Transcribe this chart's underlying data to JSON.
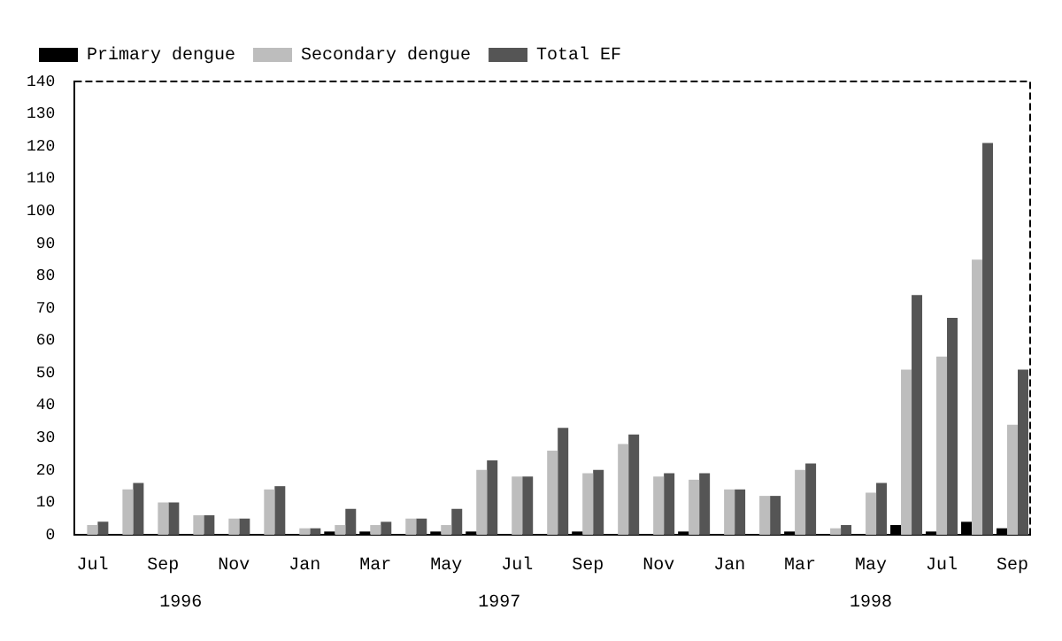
{
  "chart_data": {
    "type": "bar",
    "categories": [
      "Jul",
      null,
      "Sep",
      null,
      "Nov",
      null,
      "Jan",
      null,
      "Mar",
      null,
      "May",
      null,
      "Jul",
      null,
      "Sep",
      null,
      "Nov",
      null,
      "Jan",
      null,
      "Mar",
      null,
      "May",
      null,
      "Jul",
      null,
      "Sep"
    ],
    "series": [
      {
        "name": "Primary dengue",
        "color": "#000000",
        "values": [
          0,
          0,
          0,
          0,
          0,
          0,
          0,
          1,
          1,
          0,
          1,
          1,
          0,
          0,
          1,
          0,
          0,
          1,
          0,
          0,
          1,
          0,
          0,
          3,
          1,
          4,
          2
        ]
      },
      {
        "name": "Secondary dengue",
        "color": "#bdbdbd",
        "values": [
          3,
          14,
          10,
          6,
          5,
          14,
          2,
          3,
          3,
          5,
          3,
          20,
          18,
          26,
          19,
          28,
          18,
          17,
          14,
          12,
          20,
          2,
          13,
          51,
          55,
          85,
          34
        ]
      },
      {
        "name": "Total EF",
        "color": "#555555",
        "values": [
          4,
          16,
          10,
          6,
          5,
          15,
          2,
          8,
          4,
          5,
          8,
          23,
          18,
          33,
          20,
          31,
          19,
          19,
          14,
          12,
          22,
          3,
          16,
          74,
          67,
          121,
          51
        ]
      }
    ],
    "ylim": [
      0,
      140
    ],
    "yticks": [
      0,
      10,
      20,
      30,
      40,
      50,
      60,
      70,
      80,
      90,
      100,
      110,
      120,
      130,
      140
    ],
    "grid": false,
    "legend": "top left",
    "annotations": [
      "1996",
      "1997",
      "1998"
    ]
  }
}
